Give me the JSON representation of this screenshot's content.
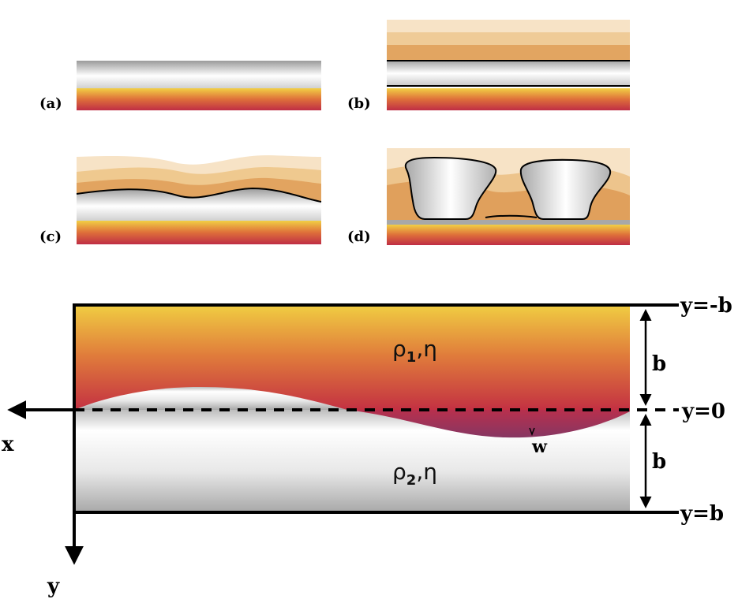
{
  "panels": {
    "a": {
      "label": "(a)"
    },
    "b": {
      "label": "(b)"
    },
    "c": {
      "label": "(c)"
    },
    "d": {
      "label": "(d)"
    }
  },
  "main": {
    "upper_fluid": {
      "symbol": "ρ",
      "sub": "1",
      "rest": ",η"
    },
    "lower_fluid": {
      "symbol": "ρ",
      "sub": "2",
      "rest": ",η"
    },
    "x_axis_label": "x",
    "y_axis_label": "y",
    "disp_label": "w",
    "top_wall_label": "y=-b",
    "interface_label": "y=0",
    "bottom_wall_label": "y=b",
    "upper_gap_label": "b",
    "lower_gap_label": "b"
  },
  "colors": {
    "fluid_top": "#f2cf45",
    "fluid_mid": "#de6f3a",
    "fluid_bottom": "#bf2e45",
    "interface_dip": "#8d3560",
    "gray_light": "#ffffff",
    "gray_dark": "#9f9f9f",
    "sand_light": "#f7e3c6",
    "sand_mid": "#ecc38d",
    "sand_dark": "#dfa160"
  }
}
